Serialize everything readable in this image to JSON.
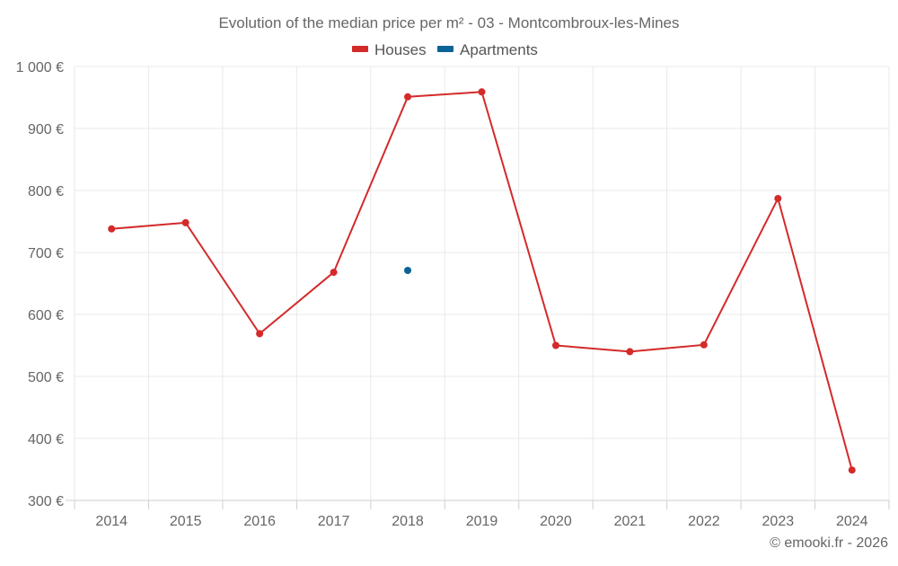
{
  "chart_data": {
    "type": "line",
    "title": "Evolution of the median price per m² - 03 - Montcombroux-les-Mines",
    "categories": [
      "2014",
      "2015",
      "2016",
      "2017",
      "2018",
      "2019",
      "2020",
      "2021",
      "2022",
      "2023",
      "2024"
    ],
    "series": [
      {
        "name": "Houses",
        "color": "#d42a2a",
        "values": [
          738,
          748,
          569,
          668,
          951,
          959,
          550,
          540,
          551,
          787,
          349
        ]
      },
      {
        "name": "Apartments",
        "color": "#0b6396",
        "values": [
          null,
          null,
          null,
          null,
          671,
          null,
          null,
          null,
          null,
          null,
          null
        ]
      }
    ],
    "y_ticks": [
      300,
      400,
      500,
      600,
      700,
      800,
      900,
      1000
    ],
    "y_tick_labels": [
      "300 €",
      "400 €",
      "500 €",
      "600 €",
      "700 €",
      "800 €",
      "900 €",
      "1 000 €"
    ],
    "ylim": [
      300,
      1000
    ],
    "xlabel": "",
    "ylabel": "",
    "grid": true,
    "legend_position": "top-center"
  },
  "credit": "© emooki.fr - 2026",
  "colors": {
    "grid": "#e9e9e9",
    "axis": "#cfcfcf",
    "text": "#666666"
  }
}
